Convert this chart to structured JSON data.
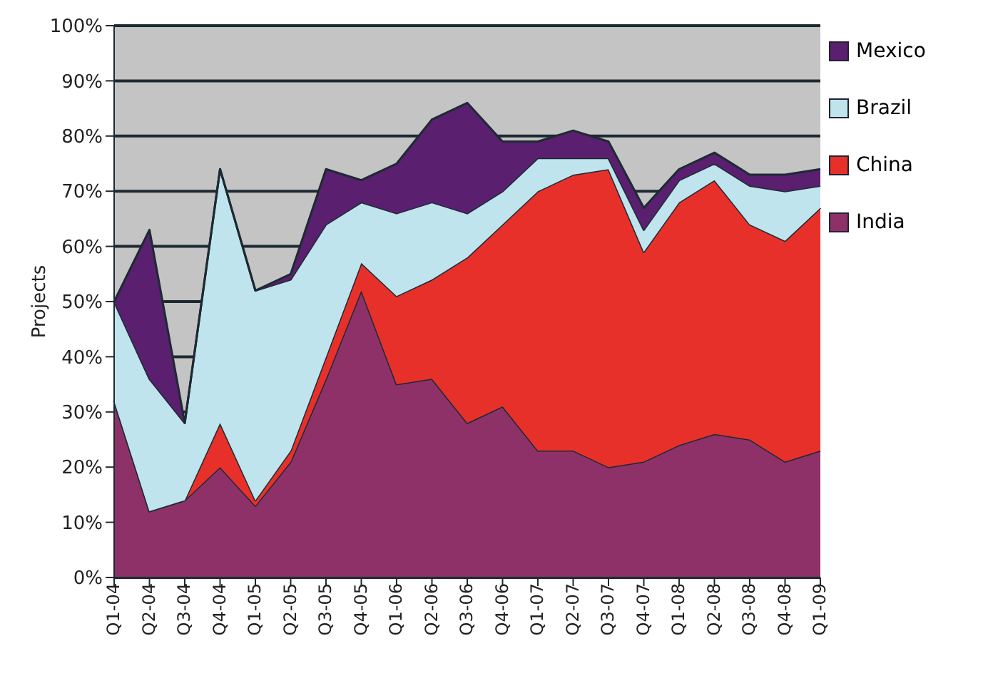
{
  "chart_data": {
    "type": "area",
    "stacked": true,
    "ylabel": "Projects",
    "categories": [
      "Q1-04",
      "Q2-04",
      "Q3-04",
      "Q4-04",
      "Q1-05",
      "Q2-05",
      "Q3-05",
      "Q4-05",
      "Q1-06",
      "Q2-06",
      "Q3-06",
      "Q4-06",
      "Q1-07",
      "Q2-07",
      "Q3-07",
      "Q4-07",
      "Q1-08",
      "Q2-08",
      "Q3-08",
      "Q4-08",
      "Q1-09"
    ],
    "series": [
      {
        "name": "India",
        "color": "#8e3168",
        "values": [
          32,
          12,
          14,
          20,
          13,
          21,
          36,
          52,
          35,
          36,
          28,
          31,
          23,
          23,
          20,
          21,
          24,
          26,
          25,
          21,
          23
        ]
      },
      {
        "name": "China",
        "color": "#e8302a",
        "values": [
          0,
          0,
          0,
          8,
          1,
          2,
          4,
          5,
          16,
          18,
          30,
          33,
          47,
          50,
          54,
          38,
          44,
          46,
          39,
          40,
          44
        ]
      },
      {
        "name": "Brazil",
        "color": "#bfe4ee",
        "values": [
          18,
          24,
          14,
          46,
          38,
          31,
          24,
          11,
          15,
          14,
          8,
          6,
          6,
          3,
          2,
          4,
          4,
          3,
          7,
          9,
          4
        ]
      },
      {
        "name": "Mexico",
        "color": "#5a1f6e",
        "values": [
          0,
          27,
          0,
          0,
          0,
          1,
          10,
          4,
          9,
          15,
          20,
          9,
          3,
          5,
          3,
          4,
          2,
          2,
          2,
          3,
          3
        ]
      }
    ],
    "ylim": [
      0,
      100
    ],
    "yticks": [
      {
        "value": 0,
        "label": "0%"
      },
      {
        "value": 10,
        "label": "10%"
      },
      {
        "value": 20,
        "label": "20%"
      },
      {
        "value": 30,
        "label": "30%"
      },
      {
        "value": 40,
        "label": "40%"
      },
      {
        "value": 50,
        "label": "50%"
      },
      {
        "value": 60,
        "label": "60%"
      },
      {
        "value": 70,
        "label": "70%"
      },
      {
        "value": 80,
        "label": "80%"
      },
      {
        "value": 90,
        "label": "90%"
      },
      {
        "value": 100,
        "label": "100%"
      }
    ],
    "grid": "y",
    "legend": "right"
  }
}
